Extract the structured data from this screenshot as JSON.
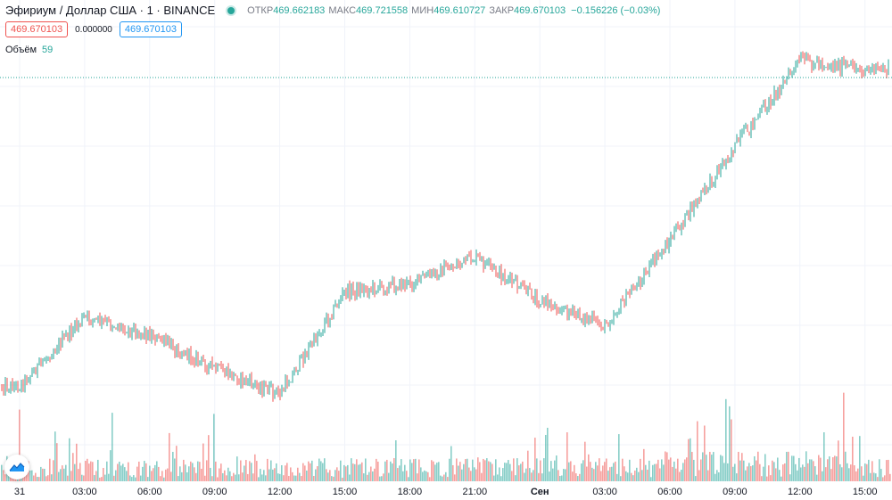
{
  "header": {
    "symbol": "Эфириум / Доллар США · 1 · BINANCE",
    "open_label": "ОТКР",
    "open_value": "469.662183",
    "high_label": "МАКС",
    "high_value": "469.721558",
    "low_label": "МИН",
    "low_value": "469.610727",
    "close_label": "ЗАКР",
    "close_value": "469.670103",
    "change": "−0.156226 (−0.03%)",
    "bid_box": "469.670103",
    "spread": "0.000000",
    "ask_box": "469.670103",
    "volume_label": "Объём",
    "volume_value": "59"
  },
  "colors": {
    "up": "#26a69a",
    "down": "#ef5350",
    "grid": "#f0f3fa",
    "axis_text": "#131722"
  },
  "icons": {
    "logo": "tradingview-logo-icon",
    "status": "market-open-dot-icon"
  },
  "chart_data": {
    "type": "candlestick",
    "title": "Эфириум / Доллар США · 1 · BINANCE",
    "interval": "1 minute",
    "x_ticks": [
      "31",
      "03:00",
      "06:00",
      "09:00",
      "12:00",
      "15:00",
      "18:00",
      "21:00",
      "Сен",
      "03:00",
      "06:00",
      "09:00",
      "12:00",
      "15:00"
    ],
    "price_path": [
      {
        "t": "31",
        "price": 467.2
      },
      {
        "t": "03:00",
        "price": 468.0
      },
      {
        "t": "06:00",
        "price": 467.8
      },
      {
        "t": "09:00",
        "price": 467.4
      },
      {
        "t": "12:00",
        "price": 467.1
      },
      {
        "t": "15:00",
        "price": 468.3
      },
      {
        "t": "18:00",
        "price": 468.4
      },
      {
        "t": "21:00",
        "price": 468.7
      },
      {
        "t": "Сен",
        "price": 468.2
      },
      {
        "t": "03:00",
        "price": 467.9
      },
      {
        "t": "06:00",
        "price": 468.9
      },
      {
        "t": "09:00",
        "price": 470.0
      },
      {
        "t": "12:00",
        "price": 471.0
      },
      {
        "t": "15:00",
        "price": 470.9
      }
    ],
    "last_price": 469.670103,
    "volume_last": 59,
    "grid": true,
    "last_price_line": "dotted"
  }
}
